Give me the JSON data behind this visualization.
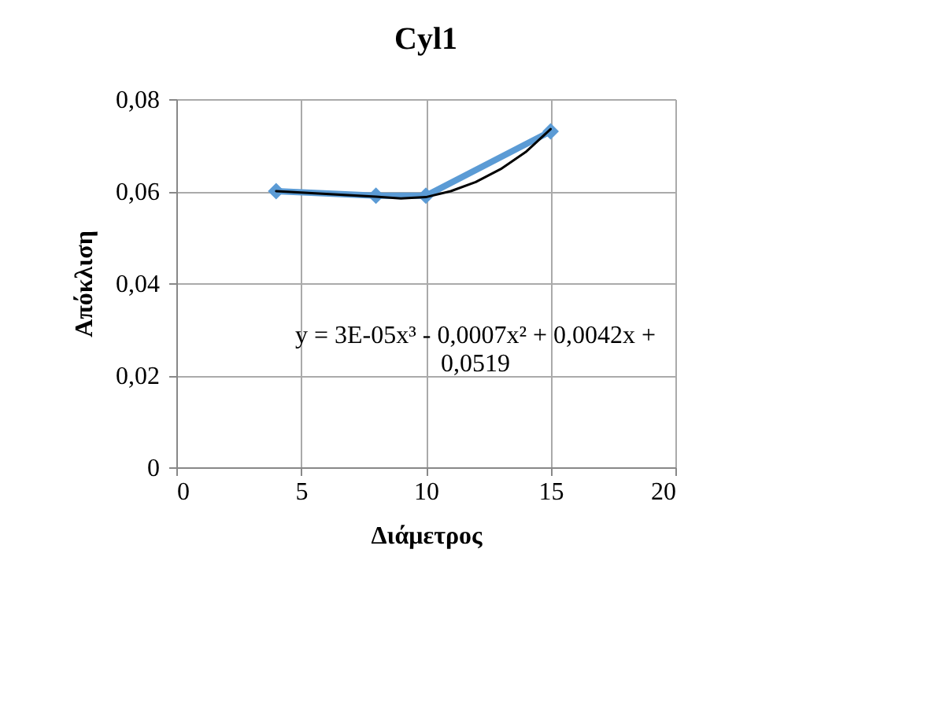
{
  "chart_data": {
    "type": "line",
    "title": "Cyl1",
    "xlabel": "Διάμετρος",
    "ylabel": "Απόκλιση",
    "xlim": [
      0,
      20
    ],
    "xticks": [
      0,
      5,
      10,
      15,
      20
    ],
    "ylim": [
      0,
      0.08
    ],
    "yticks": [
      {
        "value": 0,
        "label": "0"
      },
      {
        "value": 0.02,
        "label": "0,02"
      },
      {
        "value": 0.04,
        "label": "0,04"
      },
      {
        "value": 0.06,
        "label": "0,06"
      },
      {
        "value": 0.08,
        "label": "0,08"
      }
    ],
    "grid": true,
    "series": [
      {
        "color": "#5b9bd5",
        "marker": "diamond",
        "x": [
          4,
          8,
          10,
          15
        ],
        "values": [
          0.06,
          0.059,
          0.059,
          0.073
        ]
      },
      {
        "type": "line",
        "color": "#000000",
        "marker": "none",
        "x": [
          4,
          6,
          8,
          9,
          10,
          11,
          12,
          13,
          14,
          15
        ],
        "values": [
          0.06,
          0.0594,
          0.0588,
          0.0584,
          0.0587,
          0.06,
          0.062,
          0.0648,
          0.0685,
          0.0735
        ]
      }
    ],
    "annotations": [
      "y = 3E-05x³ - 0,0007x² + 0,0042x + 0,0519"
    ]
  }
}
